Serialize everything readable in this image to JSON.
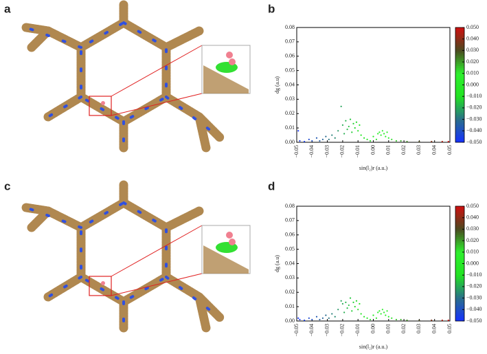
{
  "panels": [
    "a",
    "b",
    "c",
    "d"
  ],
  "chart_data": [
    {
      "type": "scatter",
      "x_label": "sin(l₂)r (a.u.)",
      "y_label": "dg (a.u)",
      "x": [
        -0.048,
        -0.045,
        -0.042,
        -0.04,
        -0.037,
        -0.035,
        -0.033,
        -0.031,
        -0.029,
        -0.027,
        -0.025,
        -0.023,
        -0.021,
        -0.02,
        -0.019,
        -0.018,
        -0.017,
        -0.016,
        -0.015,
        -0.014,
        -0.013,
        -0.012,
        -0.011,
        -0.01,
        -0.009,
        -0.008,
        -0.006,
        -0.004,
        -0.002,
        0,
        0.002,
        0.003,
        0.004,
        0.005,
        0.006,
        0.007,
        0.008,
        0.009,
        0.01,
        0.012,
        0.015,
        0.018,
        0.022,
        0.03,
        0.038,
        0.045,
        0.049,
        -0.049
      ],
      "values": [
        0.001,
        0.0005,
        0.002,
        0.001,
        0.003,
        0.001,
        0.002,
        0.004,
        0.002,
        0.005,
        0.003,
        0.008,
        0.025,
        0.012,
        0.006,
        0.015,
        0.009,
        0.011,
        0.016,
        0.007,
        0.013,
        0.01,
        0.014,
        0.008,
        0.012,
        0.005,
        0.003,
        0.002,
        0.001,
        0.004,
        0.002,
        0.006,
        0.007,
        0.005,
        0.008,
        0.006,
        0.004,
        0.007,
        0.003,
        0.002,
        0.001,
        0.001,
        0.0005,
        0.0005,
        0.0005,
        0.0005,
        0.0005,
        0.008
      ],
      "xlim": [
        -0.05,
        0.05
      ],
      "ylim": [
        0,
        0.08
      ],
      "xticks": [
        {
          "value": -0.05,
          "label": "−0.05"
        },
        {
          "value": -0.04,
          "label": "−0.04"
        },
        {
          "value": -0.03,
          "label": "−0.03"
        },
        {
          "value": -0.02,
          "label": "−0.02"
        },
        {
          "value": -0.01,
          "label": "−0.01"
        },
        {
          "value": 0,
          "label": "0.00"
        },
        0.01,
        0.02,
        0.03,
        0.04,
        0.05
      ],
      "yticks": [
        {
          "value": 0,
          "label": "0.00"
        },
        0.01,
        0.02,
        0.03,
        0.04,
        0.05,
        0.06,
        0.07,
        0.08
      ],
      "colorbar_lim": [
        -0.05,
        0.05
      ],
      "colorbar_ticks": [
        {
          "value": 0.05,
          "label": "0.050"
        },
        {
          "value": 0.04,
          "label": "0.040"
        },
        {
          "value": 0.03,
          "label": "0.030"
        },
        {
          "value": 0.02,
          "label": "0.020"
        },
        {
          "value": 0.01,
          "label": "0.010"
        },
        {
          "value": 0,
          "label": "0.000"
        },
        {
          "value": -0.01,
          "label": "−0.010"
        },
        {
          "value": -0.02,
          "label": "−0.020"
        },
        {
          "value": -0.03,
          "label": "−0.030"
        },
        {
          "value": -0.04,
          "label": "−0.040"
        },
        {
          "value": -0.05,
          "label": "−0.050"
        }
      ],
      "colormap": [
        "#1530ff",
        "#2a6f8a",
        "#22e222",
        "#2ef02e",
        "#4a4a20",
        "#d01010"
      ]
    },
    {
      "type": "scatter",
      "x_label": "sin(l₂)r (a.u.)",
      "y_label": "dg (a.u)",
      "x": [
        -0.048,
        -0.045,
        -0.042,
        -0.04,
        -0.037,
        -0.035,
        -0.033,
        -0.031,
        -0.029,
        -0.027,
        -0.025,
        -0.023,
        -0.021,
        -0.02,
        -0.019,
        -0.018,
        -0.017,
        -0.016,
        -0.015,
        -0.014,
        -0.013,
        -0.012,
        -0.011,
        -0.01,
        -0.009,
        -0.008,
        -0.006,
        -0.004,
        -0.002,
        0,
        0.002,
        0.003,
        0.004,
        0.005,
        0.006,
        0.007,
        0.008,
        0.009,
        0.01,
        0.012,
        0.015,
        0.018,
        0.022,
        0.03,
        0.038,
        0.045,
        0.049,
        -0.049
      ],
      "values": [
        0.001,
        0.0005,
        0.002,
        0.001,
        0.003,
        0.001,
        0.002,
        0.004,
        0.002,
        0.005,
        0.003,
        0.008,
        0.014,
        0.012,
        0.006,
        0.013,
        0.009,
        0.011,
        0.016,
        0.007,
        0.013,
        0.01,
        0.014,
        0.008,
        0.012,
        0.005,
        0.003,
        0.002,
        0.001,
        0.004,
        0.002,
        0.006,
        0.007,
        0.005,
        0.008,
        0.006,
        0.004,
        0.007,
        0.003,
        0.002,
        0.001,
        0.001,
        0.0005,
        0.0005,
        0.0005,
        0.0005,
        0.0005,
        0.002
      ],
      "xlim": [
        -0.05,
        0.05
      ],
      "ylim": [
        0,
        0.08
      ],
      "xticks": [
        {
          "value": -0.05,
          "label": "−0.05"
        },
        {
          "value": -0.04,
          "label": "−0.04"
        },
        {
          "value": -0.03,
          "label": "−0.03"
        },
        {
          "value": -0.02,
          "label": "−0.02"
        },
        {
          "value": -0.01,
          "label": "−0.01"
        },
        {
          "value": 0,
          "label": "0.00"
        },
        0.01,
        0.02,
        0.03,
        0.04,
        0.05
      ],
      "yticks": [
        {
          "value": 0,
          "label": "0.00"
        },
        0.01,
        0.02,
        0.03,
        0.04,
        0.05,
        0.06,
        0.07,
        0.08
      ],
      "colorbar_lim": [
        -0.05,
        0.05
      ],
      "colorbar_ticks": [
        {
          "value": 0.05,
          "label": "0.050"
        },
        {
          "value": 0.04,
          "label": "0.040"
        },
        {
          "value": 0.03,
          "label": "0.030"
        },
        {
          "value": 0.02,
          "label": "0.020"
        },
        {
          "value": 0.01,
          "label": "0.010"
        },
        {
          "value": 0,
          "label": "0.000"
        },
        {
          "value": -0.01,
          "label": "−0.010"
        },
        {
          "value": -0.02,
          "label": "−0.020"
        },
        {
          "value": -0.03,
          "label": "−0.030"
        },
        {
          "value": -0.04,
          "label": "−0.040"
        },
        {
          "value": -0.05,
          "label": "−0.050"
        }
      ],
      "colormap": [
        "#1530ff",
        "#2a6f8a",
        "#22e222",
        "#2ef02e",
        "#4a4a20",
        "#d01010"
      ]
    }
  ]
}
